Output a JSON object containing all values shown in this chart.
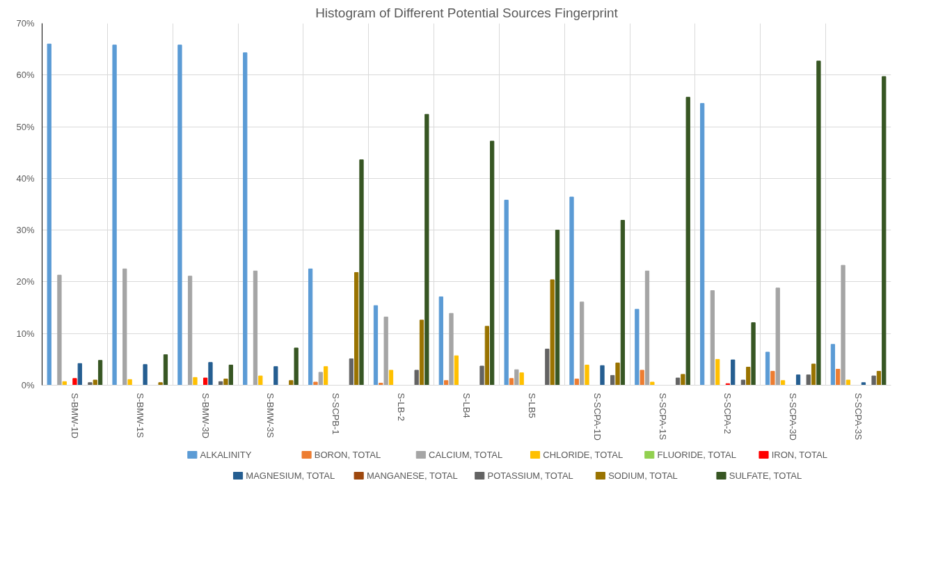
{
  "chart_data": {
    "type": "bar",
    "title": "Histogram of Different Potential Sources Fingerprint",
    "categories": [
      "S-BMW-1D",
      "S-BMW-1S",
      "S-BMW-3D",
      "S-BMW-3S",
      "S-SCPB-1",
      "S-LB-2",
      "S-LB4",
      "S-LB5",
      "S-SCPA-1D",
      "S-SCPA-1S",
      "S-SCPA-2",
      "S-SCPA-3D",
      "S-SCPA-3S"
    ],
    "series": [
      {
        "name": "ALKALINITY",
        "color": "#5b9bd5",
        "values": [
          66.0,
          65.8,
          65.8,
          64.3,
          22.5,
          15.4,
          17.1,
          35.8,
          36.4,
          14.7,
          54.5,
          6.4,
          7.9
        ]
      },
      {
        "name": "BORON, TOTAL",
        "color": "#ed7d31",
        "values": [
          0,
          0,
          0,
          0,
          0.6,
          0.4,
          0.9,
          1.3,
          1.2,
          2.9,
          0,
          2.7,
          3.1
        ]
      },
      {
        "name": "CALCIUM, TOTAL",
        "color": "#a5a5a5",
        "values": [
          21.3,
          22.5,
          21.1,
          22.1,
          2.5,
          13.2,
          13.9,
          3.0,
          16.1,
          22.1,
          18.3,
          18.8,
          23.2
        ]
      },
      {
        "name": "CHLORIDE, TOTAL",
        "color": "#ffc000",
        "values": [
          0.7,
          1.1,
          1.5,
          1.8,
          3.6,
          2.9,
          5.7,
          2.4,
          3.9,
          0.6,
          5.0,
          0.9,
          1.0
        ]
      },
      {
        "name": "FLUORIDE, TOTAL",
        "color": "#92d050",
        "values": [
          0,
          0,
          0,
          0,
          0,
          0,
          0,
          0,
          0,
          0,
          0,
          0,
          0
        ]
      },
      {
        "name": "IRON, TOTAL",
        "color": "#ff0000",
        "values": [
          1.3,
          0,
          1.4,
          0,
          0,
          0,
          0,
          0,
          0,
          0,
          0.3,
          0,
          0
        ]
      },
      {
        "name": "MAGNESIUM, TOTAL",
        "color": "#255e91",
        "values": [
          4.2,
          4.0,
          4.4,
          3.6,
          0,
          0,
          0,
          0,
          3.8,
          0,
          4.9,
          2.0,
          0.5
        ]
      },
      {
        "name": "MANGANESE, TOTAL",
        "color": "#9e480e",
        "values": [
          0,
          0,
          0,
          0,
          0,
          0,
          0,
          0,
          0,
          0,
          0,
          0,
          0
        ]
      },
      {
        "name": "POTASSIUM, TOTAL",
        "color": "#636363",
        "values": [
          0.5,
          0,
          0.7,
          0,
          5.1,
          2.9,
          3.7,
          7.0,
          1.9,
          1.4,
          1.0,
          2.0,
          1.8
        ]
      },
      {
        "name": "SODIUM, TOTAL",
        "color": "#997300",
        "values": [
          1.0,
          0.5,
          1.2,
          0.9,
          21.8,
          12.6,
          11.4,
          20.4,
          4.3,
          2.1,
          3.5,
          4.1,
          2.7
        ]
      },
      {
        "name": "SULFATE, TOTAL",
        "color": "#375623",
        "values": [
          4.8,
          5.9,
          3.9,
          7.2,
          43.6,
          52.4,
          47.2,
          30.0,
          31.9,
          55.7,
          12.1,
          62.7,
          59.7
        ]
      }
    ],
    "ylim": [
      0,
      70
    ],
    "yticks": [
      {
        "value": 0,
        "label": "0%"
      },
      {
        "value": 10,
        "label": "10%"
      },
      {
        "value": 20,
        "label": "20%"
      },
      {
        "value": 30,
        "label": "30%"
      },
      {
        "value": 40,
        "label": "40%"
      },
      {
        "value": 50,
        "label": "50%"
      },
      {
        "value": 60,
        "label": "60%"
      },
      {
        "value": 70,
        "label": "70%"
      }
    ],
    "grid": true,
    "legend": "bottom"
  }
}
